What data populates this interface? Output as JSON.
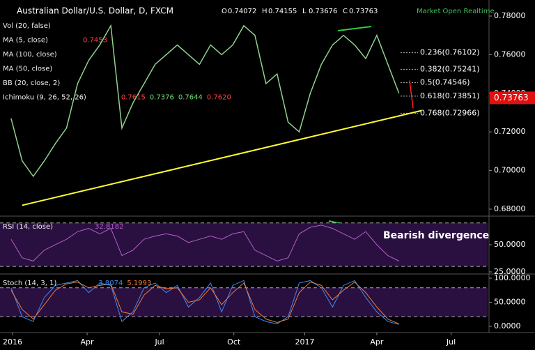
{
  "header": {
    "title": "Australian Dollar/U.S. Dollar, D, FXCM",
    "ohlc": [
      {
        "label": "O",
        "value": "0.74072"
      },
      {
        "label": "H",
        "value": "0.74155"
      },
      {
        "label": "L",
        "value": "0.73676"
      },
      {
        "label": "C",
        "value": "0.73763"
      }
    ],
    "status": "Market Open Realtime"
  },
  "indicators": [
    {
      "name": "Vol (20, false)",
      "values": []
    },
    {
      "name": "MA (5, close)",
      "values": [
        "0.7453"
      ]
    },
    {
      "name": "MA (100, close)",
      "values": []
    },
    {
      "name": "MA (50, close)",
      "values": []
    },
    {
      "name": "BB (20, close, 2)",
      "values": []
    },
    {
      "name": "Ichimoku (9, 26, 52, 26)",
      "values": [
        "0.7615",
        "0.7376",
        "0.7644",
        "0.7620"
      ]
    }
  ],
  "chart_data": [
    {
      "type": "line",
      "color": "#8fd18f",
      "values": [
        0.727,
        0.705,
        0.697,
        0.705,
        0.714,
        0.722,
        0.745,
        0.757,
        0.765,
        0.775,
        0.722,
        0.735,
        0.745,
        0.755,
        0.76,
        0.765,
        0.76,
        0.755,
        0.765,
        0.76,
        0.765,
        0.775,
        0.77,
        0.745,
        0.75,
        0.725,
        0.72,
        0.74,
        0.755,
        0.765,
        0.77,
        0.765,
        0.758,
        0.77,
        0.755,
        0.74
      ],
      "xlim": [
        -1,
        43
      ],
      "ylim": [
        0.6771,
        0.7865
      ],
      "yticks": [
        {
          "value": 0.68,
          "label": "0.68000"
        },
        {
          "value": 0.7,
          "label": "0.70000"
        },
        {
          "value": 0.72,
          "label": "0.72000"
        },
        {
          "value": 0.74,
          "label": "0.74000"
        },
        {
          "value": 0.76,
          "label": "0.76000"
        },
        {
          "value": 0.78,
          "label": "0.78000"
        }
      ],
      "last_value": 0.73763,
      "trendline": {
        "x": [
          1,
          37
        ],
        "values": [
          0.682,
          0.731
        ],
        "color": "#ffff33"
      },
      "fib_levels": [
        {
          "value": 0.76102,
          "label": "0.236(0.76102)"
        },
        {
          "value": 0.75241,
          "label": "0.382(0.75241)"
        },
        {
          "value": 0.74546,
          "label": "0.5(0.74546)"
        },
        {
          "value": 0.73851,
          "label": "0.618(0.73851)"
        },
        {
          "value": 0.72966,
          "label": "0.768(0.72966)"
        }
      ]
    },
    {
      "type": "line",
      "name": "RSI (14, close)",
      "value_label": "32.8182",
      "color": "#b25fc9",
      "values": [
        55,
        38,
        35,
        45,
        50,
        55,
        62,
        65,
        60,
        65,
        40,
        45,
        55,
        58,
        60,
        58,
        52,
        55,
        58,
        55,
        60,
        62,
        45,
        40,
        35,
        38,
        60,
        66,
        68,
        65,
        60,
        55,
        62,
        50,
        40,
        35
      ],
      "xlim": [
        -1,
        43
      ],
      "ylim": [
        23.7,
        75
      ],
      "yticks": [
        {
          "value": 25,
          "label": "25.0000"
        },
        {
          "value": 50,
          "label": "50.0000"
        }
      ],
      "bands": [
        70,
        30
      ],
      "annotation": "Bearish divergence"
    },
    {
      "type": "line",
      "name": "Stoch (14, 3, 1)",
      "xlim": [
        -1,
        43
      ],
      "ylim": [
        -11.6,
        108.7
      ],
      "series": [
        {
          "color": "#3d8bf0",
          "value_label": "3.8074",
          "values": [
            80,
            20,
            10,
            60,
            85,
            90,
            95,
            70,
            90,
            85,
            10,
            30,
            80,
            90,
            70,
            85,
            40,
            60,
            90,
            30,
            85,
            95,
            20,
            10,
            5,
            20,
            90,
            95,
            80,
            40,
            85,
            95,
            60,
            30,
            10,
            4
          ]
        },
        {
          "color": "#f07a3d",
          "value_label": "5.1993",
          "values": [
            75,
            35,
            15,
            45,
            75,
            88,
            92,
            80,
            85,
            88,
            30,
            25,
            65,
            85,
            78,
            80,
            50,
            55,
            80,
            45,
            70,
            90,
            35,
            15,
            8,
            15,
            70,
            92,
            85,
            55,
            75,
            92,
            70,
            40,
            15,
            5
          ]
        }
      ],
      "yticks": [
        {
          "value": 0,
          "label": "0.0000"
        },
        {
          "value": 50,
          "label": "50.0000"
        },
        {
          "value": 100,
          "label": "100.0000"
        }
      ],
      "bands": [
        80,
        20
      ],
      "xticks": [
        {
          "value": 0.13,
          "label": "2016"
        },
        {
          "value": 6.86,
          "label": "Apr"
        },
        {
          "value": 13.4,
          "label": "Jul"
        },
        {
          "value": 20.1,
          "label": "Oct"
        },
        {
          "value": 26.5,
          "label": "2017"
        },
        {
          "value": 33,
          "label": "Apr"
        },
        {
          "value": 39.7,
          "label": "Jul"
        }
      ]
    }
  ]
}
